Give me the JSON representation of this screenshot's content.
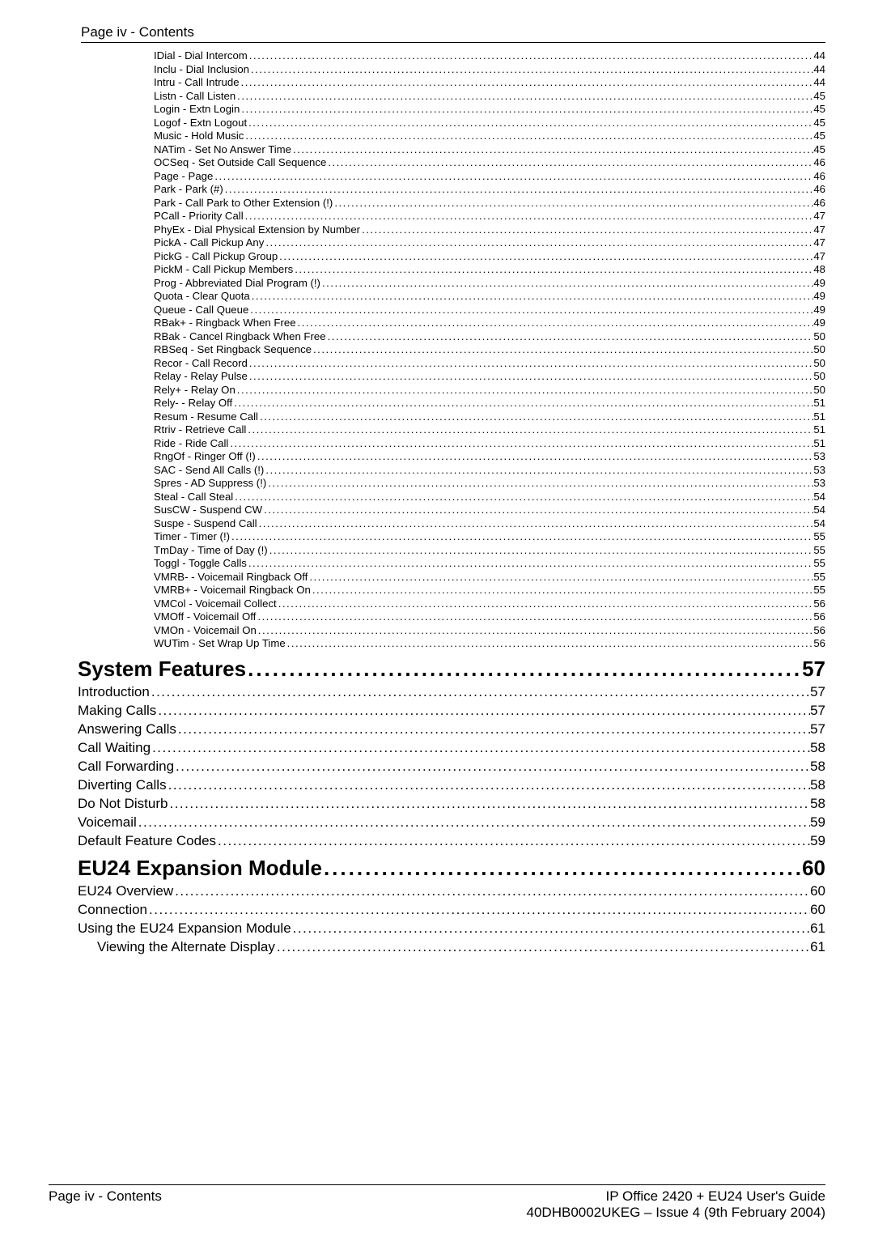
{
  "header": {
    "title": "Page iv - Contents"
  },
  "toc": {
    "dot_char": ".",
    "dot_repeat": 200,
    "level3": [
      {
        "label": "IDial - Dial Intercom",
        "page": "44"
      },
      {
        "label": "Inclu - Dial Inclusion ",
        "page": "44"
      },
      {
        "label": "Intru - Call Intrude",
        "page": "44"
      },
      {
        "label": "Listn - Call Listen",
        "page": "45"
      },
      {
        "label": "Login - Extn Login ",
        "page": "45"
      },
      {
        "label": "Logof - Extn Logout ",
        "page": "45"
      },
      {
        "label": "Music - Hold Music ",
        "page": "45"
      },
      {
        "label": "NATim - Set No Answer Time ",
        "page": "45"
      },
      {
        "label": "OCSeq - Set Outside Call Sequence ",
        "page": "46"
      },
      {
        "label": "Page - Page",
        "page": "46"
      },
      {
        "label": "Park - Park (#) ",
        "page": "46"
      },
      {
        "label": "Park - Call Park to Other Extension (!) ",
        "page": "46"
      },
      {
        "label": "PCall - Priority Call ",
        "page": "47"
      },
      {
        "label": "PhyEx - Dial Physical Extension by Number",
        "page": "47"
      },
      {
        "label": "PickA - Call Pickup Any",
        "page": "47"
      },
      {
        "label": "PickG - Call Pickup Group",
        "page": "47"
      },
      {
        "label": "PickM - Call Pickup Members ",
        "page": "48"
      },
      {
        "label": "Prog - Abbreviated Dial Program (!) ",
        "page": "49"
      },
      {
        "label": "Quota - Clear Quota ",
        "page": "49"
      },
      {
        "label": "Queue - Call Queue ",
        "page": "49"
      },
      {
        "label": "RBak+ - Ringback When Free ",
        "page": "49"
      },
      {
        "label": "RBak - Cancel Ringback When Free ",
        "page": "50"
      },
      {
        "label": "RBSeq - Set Ringback Sequence ",
        "page": "50"
      },
      {
        "label": "Recor - Call Record ",
        "page": "50"
      },
      {
        "label": "Relay - Relay Pulse ",
        "page": "50"
      },
      {
        "label": "Rely+ - Relay On ",
        "page": "50"
      },
      {
        "label": "Rely- - Relay Off ",
        "page": "51"
      },
      {
        "label": "Resum - Resume Call ",
        "page": "51"
      },
      {
        "label": "Rtriv - Retrieve Call ",
        "page": "51"
      },
      {
        "label": "Ride - Ride Call ",
        "page": "51"
      },
      {
        "label": "RngOf - Ringer Off (!) ",
        "page": "53"
      },
      {
        "label": "SAC - Send All Calls (!) ",
        "page": "53"
      },
      {
        "label": "Spres - AD Suppress (!) ",
        "page": "53"
      },
      {
        "label": "Steal - Call Steal",
        "page": "54"
      },
      {
        "label": "SusCW - Suspend CW",
        "page": "54"
      },
      {
        "label": "Suspe - Suspend Call",
        "page": "54"
      },
      {
        "label": "Timer - Timer (!)",
        "page": "55"
      },
      {
        "label": "TmDay - Time of Day (!) ",
        "page": "55"
      },
      {
        "label": "Toggl - Toggle Calls ",
        "page": "55"
      },
      {
        "label": "VMRB- - Voicemail Ringback Off ",
        "page": "55"
      },
      {
        "label": "VMRB+ - Voicemail Ringback On ",
        "page": "55"
      },
      {
        "label": "VMCol - Voicemail Collect",
        "page": "56"
      },
      {
        "label": "VMOff - Voicemail Off",
        "page": "56"
      },
      {
        "label": "VMOn - Voicemail On",
        "page": "56"
      },
      {
        "label": "WUTim - Set Wrap Up Time",
        "page": "56"
      }
    ],
    "section_system": {
      "heading": {
        "label": "System Features ",
        "page": " 57"
      },
      "items": [
        {
          "label": "Introduction ",
          "page": " 57"
        },
        {
          "label": "Making Calls ",
          "page": " 57"
        },
        {
          "label": "Answering Calls ",
          "page": " 57"
        },
        {
          "label": "Call Waiting",
          "page": " 58"
        },
        {
          "label": "Call Forwarding ",
          "page": " 58"
        },
        {
          "label": "Diverting Calls",
          "page": " 58"
        },
        {
          "label": "Do Not Disturb ",
          "page": " 58"
        },
        {
          "label": "Voicemail ",
          "page": " 59"
        },
        {
          "label": "Default Feature Codes ",
          "page": " 59"
        }
      ]
    },
    "section_eu24": {
      "heading": {
        "label": "EU24 Expansion Module ",
        "page": " 60"
      },
      "items": [
        {
          "label": "EU24 Overview ",
          "page": " 60"
        },
        {
          "label": "Connection",
          "page": " 60"
        },
        {
          "label": "Using the EU24 Expansion Module ",
          "page": " 61"
        }
      ],
      "subitems": [
        {
          "label": "Viewing the Alternate Display ",
          "page": " 61"
        }
      ]
    }
  },
  "footer": {
    "left": "Page iv - Contents",
    "right_line1": "IP Office 2420 + EU24 User's Guide",
    "right_line2": "40DHB0002UKEG – Issue 4 (9th February 2004)"
  }
}
